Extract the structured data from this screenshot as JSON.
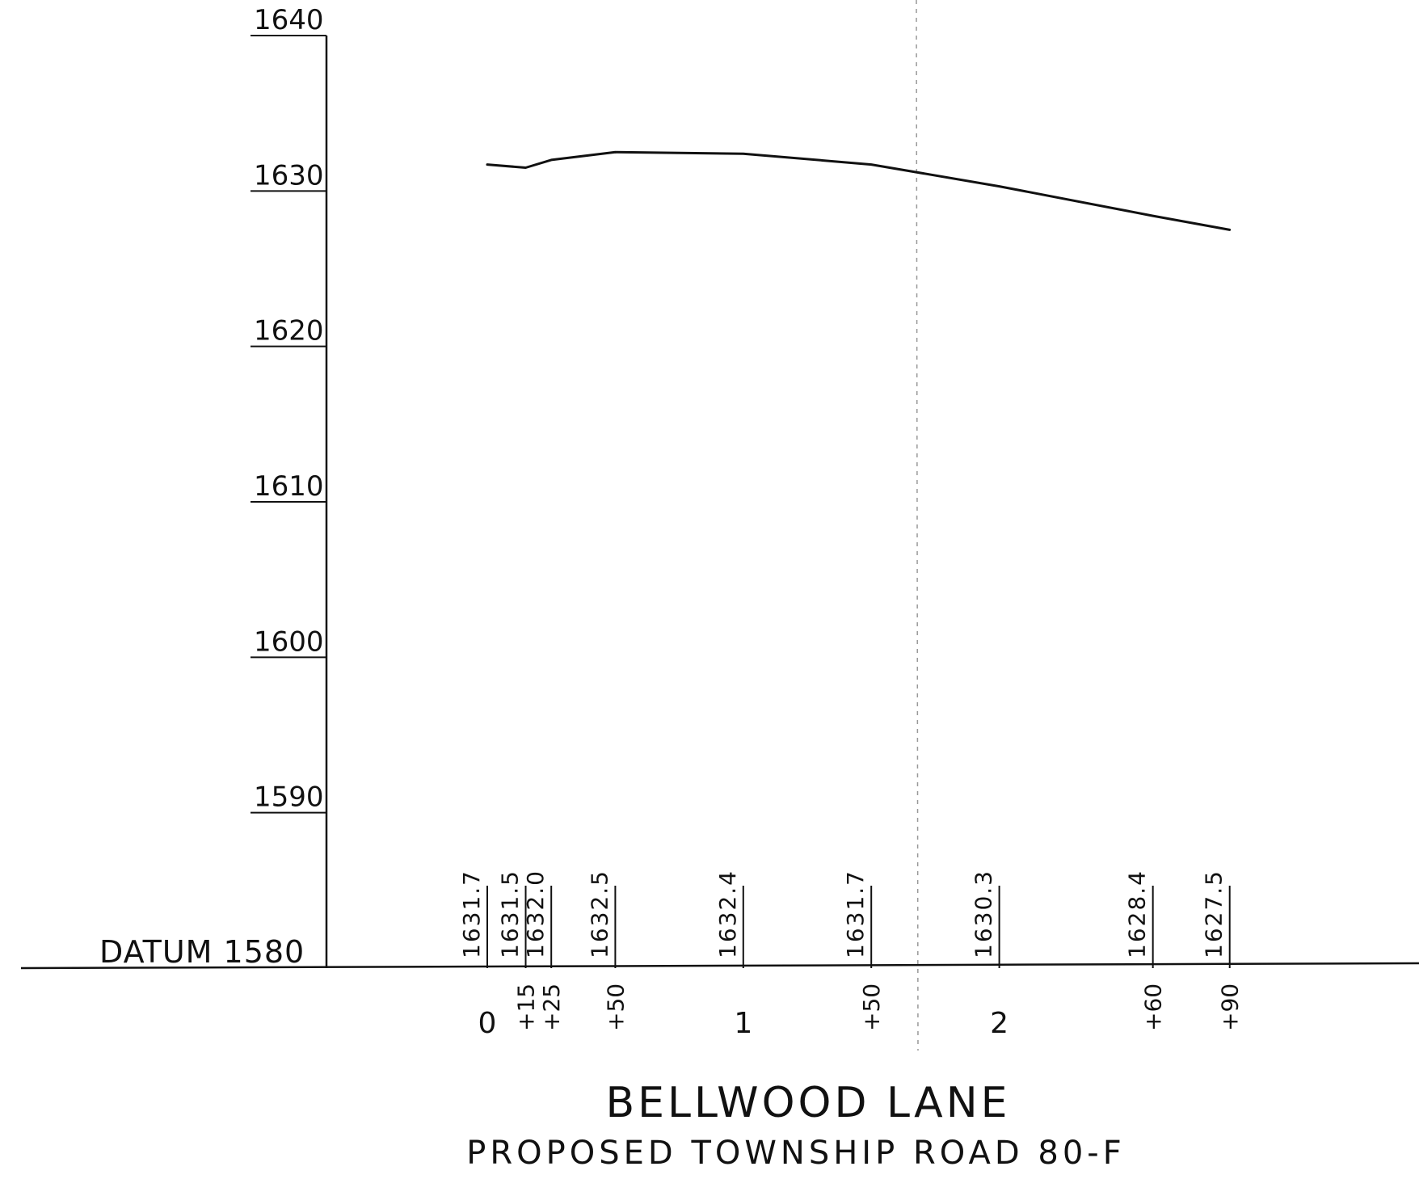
{
  "chart_data": {
    "type": "line",
    "title": "BELLWOOD LANE",
    "subtitle": "PROPOSED TOWNSHIP ROAD 80-F",
    "datum_label": "DATUM 1580",
    "ylim": [
      1580,
      1640
    ],
    "y_ticks": [
      {
        "value": 1640,
        "label": "1640"
      },
      {
        "value": 1630,
        "label": "1630"
      },
      {
        "value": 1620,
        "label": "1620"
      },
      {
        "value": 1610,
        "label": "1610"
      },
      {
        "value": 1600,
        "label": "1600"
      },
      {
        "value": 1590,
        "label": "1590"
      }
    ],
    "grid": false,
    "points": [
      {
        "station": 0,
        "station_label": "0",
        "elevation": 1631.7,
        "elevation_label": "1631.7"
      },
      {
        "station": 15,
        "station_label": "+15",
        "elevation": 1631.5,
        "elevation_label": "1631.5"
      },
      {
        "station": 25,
        "station_label": "+25",
        "elevation": 1632.0,
        "elevation_label": "1632.0"
      },
      {
        "station": 50,
        "station_label": "+50",
        "elevation": 1632.5,
        "elevation_label": "1632.5"
      },
      {
        "station": 100,
        "station_label": "1",
        "elevation": 1632.4,
        "elevation_label": "1632.4"
      },
      {
        "station": 150,
        "station_label": "+50",
        "elevation": 1631.7,
        "elevation_label": "1631.7"
      },
      {
        "station": 200,
        "station_label": "2",
        "elevation": 1630.3,
        "elevation_label": "1630.3"
      },
      {
        "station": 260,
        "station_label": "+60",
        "elevation": 1628.4,
        "elevation_label": "1628.4"
      },
      {
        "station": 290,
        "station_label": "+90",
        "elevation": 1627.5,
        "elevation_label": "1627.5"
      }
    ],
    "colors": {
      "ink": "#111111",
      "faint_line": "#999999"
    }
  }
}
